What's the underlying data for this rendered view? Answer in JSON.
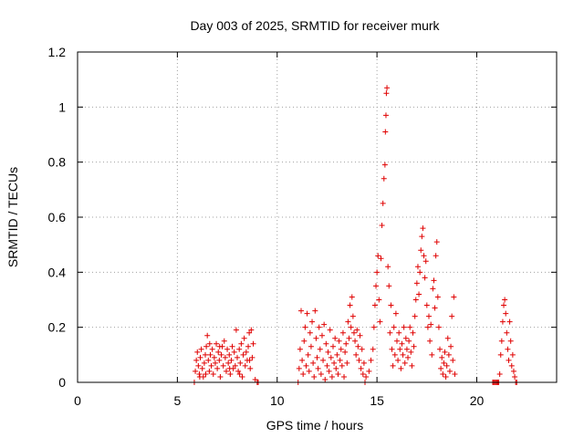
{
  "chart_data": {
    "type": "scatter",
    "title": "Day 003 of 2025, SRMTID for receiver murk",
    "xlabel": "GPS time / hours",
    "ylabel": "SRMTID / TECUs",
    "xlim": [
      0,
      24
    ],
    "ylim": [
      0,
      1.2
    ],
    "xticks": [
      0,
      5,
      10,
      15,
      20
    ],
    "yticks": [
      0,
      0.2,
      0.4,
      0.6,
      0.8,
      1,
      1.2
    ],
    "xtick_labels": [
      "0",
      "5",
      "10",
      "15",
      "20"
    ],
    "ytick_labels": [
      "0",
      "0.2",
      "0.4",
      "0.6",
      "0.8",
      "1",
      "1.2"
    ],
    "grid": true,
    "marker": "+",
    "color": "#e00000",
    "series": [
      {
        "points": [
          [
            5.85,
            0.0
          ],
          [
            5.9,
            0.04
          ],
          [
            5.95,
            0.08
          ],
          [
            6.0,
            0.11
          ],
          [
            6.05,
            0.06
          ],
          [
            6.1,
            0.03
          ],
          [
            6.15,
            0.09
          ],
          [
            6.2,
            0.12
          ],
          [
            6.25,
            0.05
          ],
          [
            6.3,
            0.02
          ],
          [
            6.35,
            0.07
          ],
          [
            6.4,
            0.1
          ],
          [
            6.45,
            0.13
          ],
          [
            6.5,
            0.17
          ],
          [
            6.55,
            0.08
          ],
          [
            6.6,
            0.04
          ],
          [
            6.65,
            0.1
          ],
          [
            6.7,
            0.06
          ],
          [
            6.75,
            0.12
          ],
          [
            6.8,
            0.03
          ],
          [
            6.85,
            0.09
          ],
          [
            6.9,
            0.07
          ],
          [
            6.95,
            0.14
          ],
          [
            7.0,
            0.05
          ],
          [
            7.05,
            0.11
          ],
          [
            7.1,
            0.08
          ],
          [
            7.15,
            0.02
          ],
          [
            7.2,
            0.1
          ],
          [
            7.25,
            0.13
          ],
          [
            7.3,
            0.06
          ],
          [
            7.35,
            0.15
          ],
          [
            7.4,
            0.09
          ],
          [
            7.45,
            0.04
          ],
          [
            7.5,
            0.12
          ],
          [
            7.55,
            0.07
          ],
          [
            7.6,
            0.1
          ],
          [
            7.65,
            0.03
          ],
          [
            7.7,
            0.08
          ],
          [
            7.75,
            0.13
          ],
          [
            7.8,
            0.05
          ],
          [
            7.85,
            0.11
          ],
          [
            7.9,
            0.06
          ],
          [
            7.95,
            0.19
          ],
          [
            8.0,
            0.09
          ],
          [
            8.05,
            0.04
          ],
          [
            8.1,
            0.12
          ],
          [
            8.15,
            0.07
          ],
          [
            8.2,
            0.14
          ],
          [
            8.25,
            0.02
          ],
          [
            8.3,
            0.1
          ],
          [
            8.35,
            0.16
          ],
          [
            8.4,
            0.06
          ],
          [
            8.45,
            0.11
          ],
          [
            8.5,
            0.08
          ],
          [
            8.55,
            0.13
          ],
          [
            8.6,
            0.18
          ],
          [
            8.65,
            0.05
          ],
          [
            8.7,
            0.19
          ],
          [
            8.75,
            0.09
          ],
          [
            8.8,
            0.14
          ],
          [
            8.9,
            0.01
          ],
          [
            9.0,
            0.0
          ],
          [
            9.05,
            0.0
          ],
          [
            6.12,
            0.02
          ],
          [
            6.62,
            0.14
          ],
          [
            7.12,
            0.13
          ],
          [
            7.62,
            0.05
          ],
          [
            8.12,
            0.03
          ],
          [
            8.62,
            0.08
          ],
          [
            6.42,
            0.03
          ],
          [
            11.05,
            0.0
          ],
          [
            11.1,
            0.05
          ],
          [
            11.15,
            0.12
          ],
          [
            11.2,
            0.26
          ],
          [
            11.25,
            0.08
          ],
          [
            11.3,
            0.03
          ],
          [
            11.35,
            0.15
          ],
          [
            11.4,
            0.2
          ],
          [
            11.45,
            0.06
          ],
          [
            11.5,
            0.25
          ],
          [
            11.55,
            0.1
          ],
          [
            11.6,
            0.04
          ],
          [
            11.65,
            0.18
          ],
          [
            11.7,
            0.13
          ],
          [
            11.75,
            0.22
          ],
          [
            11.8,
            0.07
          ],
          [
            11.85,
            0.02
          ],
          [
            11.9,
            0.26
          ],
          [
            11.95,
            0.16
          ],
          [
            12.0,
            0.09
          ],
          [
            12.05,
            0.05
          ],
          [
            12.1,
            0.2
          ],
          [
            12.15,
            0.12
          ],
          [
            12.2,
            0.03
          ],
          [
            12.25,
            0.17
          ],
          [
            12.3,
            0.08
          ],
          [
            12.35,
            0.21
          ],
          [
            12.4,
            0.01
          ],
          [
            12.45,
            0.14
          ],
          [
            12.5,
            0.06
          ],
          [
            12.55,
            0.11
          ],
          [
            12.6,
            0.04
          ],
          [
            12.65,
            0.19
          ],
          [
            12.7,
            0.09
          ],
          [
            12.75,
            0.02
          ],
          [
            12.8,
            0.13
          ],
          [
            12.85,
            0.07
          ],
          [
            12.9,
            0.16
          ],
          [
            12.95,
            0.05
          ],
          [
            13.0,
            0.1
          ],
          [
            13.05,
            0.03
          ],
          [
            13.1,
            0.15
          ],
          [
            13.15,
            0.08
          ],
          [
            13.2,
            0.12
          ],
          [
            13.25,
            0.06
          ],
          [
            13.3,
            0.18
          ],
          [
            13.35,
            0.02
          ],
          [
            13.4,
            0.11
          ],
          [
            13.45,
            0.14
          ],
          [
            13.5,
            0.07
          ],
          [
            13.55,
            0.22
          ],
          [
            13.6,
            0.16
          ],
          [
            13.65,
            0.28
          ],
          [
            13.7,
            0.2
          ],
          [
            13.75,
            0.31
          ],
          [
            13.8,
            0.24
          ],
          [
            13.85,
            0.18
          ],
          [
            13.9,
            0.15
          ],
          [
            13.95,
            0.1
          ],
          [
            14.0,
            0.19
          ],
          [
            14.05,
            0.13
          ],
          [
            14.1,
            0.08
          ],
          [
            14.15,
            0.17
          ],
          [
            14.2,
            0.05
          ],
          [
            14.25,
            0.12
          ],
          [
            14.3,
            0.03
          ],
          [
            14.35,
            0.07
          ],
          [
            14.4,
            0.0
          ],
          [
            14.45,
            0.02
          ],
          [
            14.6,
            0.04
          ],
          [
            14.7,
            0.08
          ],
          [
            14.8,
            0.12
          ],
          [
            14.85,
            0.2
          ],
          [
            14.9,
            0.28
          ],
          [
            14.95,
            0.35
          ],
          [
            15.0,
            0.4
          ],
          [
            15.05,
            0.46
          ],
          [
            15.1,
            0.3
          ],
          [
            15.15,
            0.22
          ],
          [
            15.2,
            0.45
          ],
          [
            15.25,
            0.57
          ],
          [
            15.3,
            0.65
          ],
          [
            15.35,
            0.74
          ],
          [
            15.4,
            0.79
          ],
          [
            15.42,
            0.91
          ],
          [
            15.45,
            0.97
          ],
          [
            15.47,
            1.05
          ],
          [
            15.5,
            1.07
          ],
          [
            15.55,
            0.42
          ],
          [
            15.6,
            0.35
          ],
          [
            15.65,
            0.18
          ],
          [
            15.7,
            0.28
          ],
          [
            15.75,
            0.12
          ],
          [
            15.8,
            0.06
          ],
          [
            15.85,
            0.2
          ],
          [
            15.9,
            0.1
          ],
          [
            15.95,
            0.25
          ],
          [
            16.0,
            0.15
          ],
          [
            16.05,
            0.08
          ],
          [
            16.1,
            0.18
          ],
          [
            16.15,
            0.12
          ],
          [
            16.2,
            0.05
          ],
          [
            16.25,
            0.14
          ],
          [
            16.3,
            0.1
          ],
          [
            16.35,
            0.2
          ],
          [
            16.4,
            0.07
          ],
          [
            16.45,
            0.16
          ],
          [
            16.5,
            0.12
          ],
          [
            16.55,
            0.09
          ],
          [
            16.6,
            0.15
          ],
          [
            16.65,
            0.2
          ],
          [
            16.7,
            0.11
          ],
          [
            16.75,
            0.06
          ],
          [
            16.8,
            0.18
          ],
          [
            16.85,
            0.13
          ],
          [
            16.9,
            0.24
          ],
          [
            16.95,
            0.3
          ],
          [
            17.0,
            0.36
          ],
          [
            17.05,
            0.42
          ],
          [
            17.1,
            0.32
          ],
          [
            17.15,
            0.4
          ],
          [
            17.2,
            0.48
          ],
          [
            17.25,
            0.53
          ],
          [
            17.3,
            0.56
          ],
          [
            17.35,
            0.46
          ],
          [
            17.4,
            0.38
          ],
          [
            17.45,
            0.44
          ],
          [
            17.5,
            0.28
          ],
          [
            17.55,
            0.2
          ],
          [
            17.6,
            0.24
          ],
          [
            17.65,
            0.15
          ],
          [
            17.7,
            0.21
          ],
          [
            17.75,
            0.1
          ],
          [
            17.8,
            0.34
          ],
          [
            17.85,
            0.37
          ],
          [
            17.9,
            0.27
          ],
          [
            17.95,
            0.46
          ],
          [
            18.0,
            0.51
          ],
          [
            18.05,
            0.31
          ],
          [
            18.1,
            0.2
          ],
          [
            18.15,
            0.12
          ],
          [
            18.2,
            0.05
          ],
          [
            18.25,
            0.09
          ],
          [
            18.3,
            0.03
          ],
          [
            18.35,
            0.07
          ],
          [
            18.4,
            0.11
          ],
          [
            18.45,
            0.02
          ],
          [
            18.5,
            0.06
          ],
          [
            18.55,
            0.16
          ],
          [
            18.6,
            0.1
          ],
          [
            18.65,
            0.04
          ],
          [
            18.7,
            0.13
          ],
          [
            18.75,
            0.24
          ],
          [
            18.8,
            0.08
          ],
          [
            18.85,
            0.31
          ],
          [
            18.9,
            0.03
          ],
          [
            20.8,
            0.0
          ],
          [
            20.85,
            0.0
          ],
          [
            20.9,
            0.0
          ],
          [
            20.95,
            0.0
          ],
          [
            21.0,
            0.0
          ],
          [
            21.05,
            0.0
          ],
          [
            21.1,
            0.0
          ],
          [
            21.15,
            0.03
          ],
          [
            21.2,
            0.1
          ],
          [
            21.25,
            0.15
          ],
          [
            21.3,
            0.22
          ],
          [
            21.35,
            0.28
          ],
          [
            21.4,
            0.3
          ],
          [
            21.45,
            0.25
          ],
          [
            21.5,
            0.18
          ],
          [
            21.55,
            0.12
          ],
          [
            21.6,
            0.08
          ],
          [
            21.65,
            0.22
          ],
          [
            21.7,
            0.15
          ],
          [
            21.75,
            0.06
          ],
          [
            21.8,
            0.1
          ],
          [
            21.85,
            0.04
          ],
          [
            21.9,
            0.02
          ],
          [
            21.95,
            0.0
          ],
          [
            22.0,
            0.0
          ]
        ]
      }
    ]
  }
}
